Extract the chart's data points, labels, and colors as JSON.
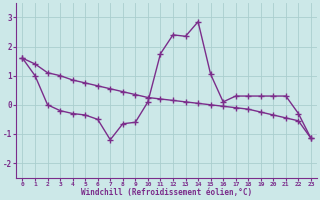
{
  "line1_x": [
    0,
    1,
    2,
    3,
    4,
    5,
    6,
    7,
    8,
    9,
    10,
    11,
    12,
    13,
    14,
    15,
    16,
    17,
    18,
    19,
    20,
    21,
    22,
    23
  ],
  "line1_y": [
    1.6,
    1.4,
    1.1,
    1.0,
    0.85,
    0.75,
    0.65,
    0.55,
    0.45,
    0.35,
    0.25,
    0.2,
    0.15,
    0.1,
    0.05,
    0.0,
    -0.05,
    -0.1,
    -0.15,
    -0.25,
    -0.35,
    -0.45,
    -0.55,
    -1.15
  ],
  "line2_x": [
    0,
    1,
    2,
    3,
    4,
    5,
    6,
    7,
    8,
    9,
    10,
    11,
    12,
    13,
    14,
    15,
    16,
    17,
    18,
    19,
    20,
    21,
    22,
    23
  ],
  "line2_y": [
    1.6,
    1.0,
    0.0,
    -0.2,
    -0.3,
    -0.35,
    -0.5,
    -1.2,
    -0.65,
    -0.6,
    0.1,
    1.75,
    2.4,
    2.35,
    2.85,
    1.05,
    0.1,
    0.3,
    0.3,
    0.3,
    0.3,
    0.3,
    -0.3,
    -1.15
  ],
  "color": "#7b2d8b",
  "bg_color": "#cce8e8",
  "grid_color": "#aacece",
  "xlim": [
    -0.5,
    23.5
  ],
  "ylim": [
    -2.5,
    3.5
  ],
  "yticks": [
    -2,
    -1,
    0,
    1,
    2,
    3
  ],
  "xticks": [
    0,
    1,
    2,
    3,
    4,
    5,
    6,
    7,
    8,
    9,
    10,
    11,
    12,
    13,
    14,
    15,
    16,
    17,
    18,
    19,
    20,
    21,
    22,
    23
  ],
  "xlabel": "Windchill (Refroidissement éolien,°C)",
  "marker": "+",
  "markersize": 4,
  "linewidth": 1.0,
  "fig_width": 3.2,
  "fig_height": 2.0,
  "dpi": 100
}
